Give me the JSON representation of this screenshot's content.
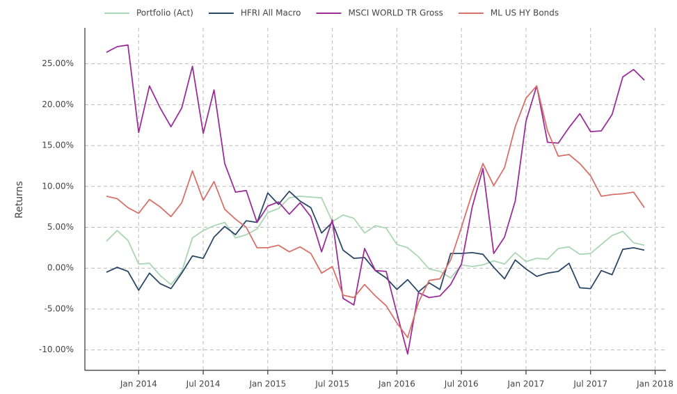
{
  "chart_data": {
    "type": "line",
    "y_label": "Returns",
    "x": [
      "2013-10",
      "2013-11",
      "2013-12",
      "2014-01",
      "2014-02",
      "2014-03",
      "2014-04",
      "2014-05",
      "2014-06",
      "2014-07",
      "2014-08",
      "2014-09",
      "2014-10",
      "2014-11",
      "2014-12",
      "2015-01",
      "2015-02",
      "2015-03",
      "2015-04",
      "2015-05",
      "2015-06",
      "2015-07",
      "2015-08",
      "2015-09",
      "2015-10",
      "2015-11",
      "2015-12",
      "2016-01",
      "2016-02",
      "2016-03",
      "2016-04",
      "2016-05",
      "2016-06",
      "2016-07",
      "2016-08",
      "2016-09",
      "2016-10",
      "2016-11",
      "2016-12",
      "2017-01",
      "2017-02",
      "2017-03",
      "2017-04",
      "2017-05",
      "2017-06",
      "2017-07",
      "2017-08",
      "2017-09",
      "2017-10",
      "2017-11",
      "2017-12"
    ],
    "series": [
      {
        "name": "Portfolio (Act)",
        "color": "#a9d6b3",
        "values": [
          3.3,
          4.6,
          3.4,
          0.5,
          0.6,
          -0.9,
          -2.0,
          -0.4,
          3.7,
          4.6,
          5.2,
          5.6,
          3.7,
          4.1,
          4.8,
          6.8,
          7.3,
          8.6,
          8.8,
          8.7,
          8.6,
          5.7,
          6.5,
          6.1,
          4.3,
          5.2,
          4.9,
          2.9,
          2.5,
          1.4,
          -0.1,
          -0.4,
          -1.2,
          0.4,
          0.2,
          0.4,
          0.9,
          0.5,
          1.9,
          0.8,
          1.2,
          1.1,
          2.4,
          2.6,
          1.7,
          1.8,
          2.9,
          4.0,
          4.5,
          3.1,
          2.8
        ]
      },
      {
        "name": "HFRI All Macro",
        "color": "#2b4766",
        "values": [
          -0.5,
          0.1,
          -0.4,
          -2.7,
          -0.6,
          -1.9,
          -2.5,
          -0.6,
          1.5,
          1.2,
          3.8,
          5.1,
          4.1,
          5.8,
          5.6,
          9.2,
          7.8,
          9.4,
          8.2,
          7.4,
          4.3,
          5.6,
          2.2,
          1.2,
          1.3,
          -0.3,
          -1.2,
          -2.6,
          -1.4,
          -2.9,
          -1.8,
          -2.6,
          1.8,
          1.8,
          1.9,
          1.7,
          0.1,
          -1.3,
          1.0,
          -0.1,
          -1.0,
          -0.6,
          -0.4,
          0.6,
          -2.4,
          -2.5,
          -0.3,
          -0.8,
          2.3,
          2.5,
          2.2
        ]
      },
      {
        "name": "MSCI WORLD TR Gross",
        "color": "#9a2e98",
        "values": [
          26.4,
          27.1,
          27.3,
          16.6,
          22.3,
          19.6,
          17.3,
          19.6,
          24.7,
          16.5,
          21.8,
          12.8,
          9.3,
          9.5,
          5.6,
          7.6,
          8.1,
          6.6,
          8.0,
          6.3,
          2.0,
          5.9,
          -3.7,
          -4.5,
          2.4,
          -0.3,
          -0.4,
          -5.5,
          -10.5,
          -3.0,
          -3.6,
          -3.4,
          -2.0,
          0.5,
          7.5,
          12.2,
          1.8,
          3.8,
          8.2,
          18.0,
          22.3,
          15.4,
          15.3,
          17.2,
          18.9,
          16.7,
          16.8,
          18.8,
          23.4,
          24.3,
          23.0
        ]
      },
      {
        "name": "ML US HY Bonds",
        "color": "#d8706a",
        "values": [
          8.8,
          8.5,
          7.4,
          6.7,
          8.4,
          7.5,
          6.3,
          8.0,
          11.9,
          8.3,
          10.6,
          7.2,
          6.0,
          5.0,
          2.5,
          2.5,
          2.8,
          2.0,
          2.6,
          1.8,
          -0.6,
          0.2,
          -3.3,
          -3.6,
          -2.0,
          -3.4,
          -4.6,
          -6.7,
          -8.5,
          -4.2,
          -1.5,
          -1.3,
          1.0,
          5.0,
          9.2,
          12.8,
          10.1,
          12.3,
          17.3,
          20.8,
          22.3,
          16.8,
          13.7,
          13.9,
          12.8,
          11.3,
          8.8,
          9.0,
          9.1,
          9.3,
          7.4
        ]
      }
    ],
    "xlim": [
      "2013-08",
      "2018-02"
    ],
    "xticks": [
      {
        "value": "2014-01",
        "label": "Jan 2014"
      },
      {
        "value": "2014-07",
        "label": "Jul 2014"
      },
      {
        "value": "2015-01",
        "label": "Jan 2015"
      },
      {
        "value": "2015-07",
        "label": "Jul 2015"
      },
      {
        "value": "2016-01",
        "label": "Jan 2016"
      },
      {
        "value": "2016-07",
        "label": "Jul 2016"
      },
      {
        "value": "2017-01",
        "label": "Jan 2017"
      },
      {
        "value": "2017-07",
        "label": "Jul 2017"
      },
      {
        "value": "2018-01",
        "label": "Jan 2018"
      }
    ],
    "ylim": [
      -12.5,
      29.4
    ],
    "yticks": [
      {
        "value": -10,
        "label": "-10.00%"
      },
      {
        "value": -5,
        "label": "-5.00%"
      },
      {
        "value": 0,
        "label": "0.00%"
      },
      {
        "value": 5,
        "label": "5.00%"
      },
      {
        "value": 10,
        "label": "10.00%"
      },
      {
        "value": 15,
        "label": "15.00%"
      },
      {
        "value": 20,
        "label": "20.00%"
      },
      {
        "value": 25,
        "label": "25.00%"
      }
    ],
    "grid": true,
    "legend": "top"
  }
}
